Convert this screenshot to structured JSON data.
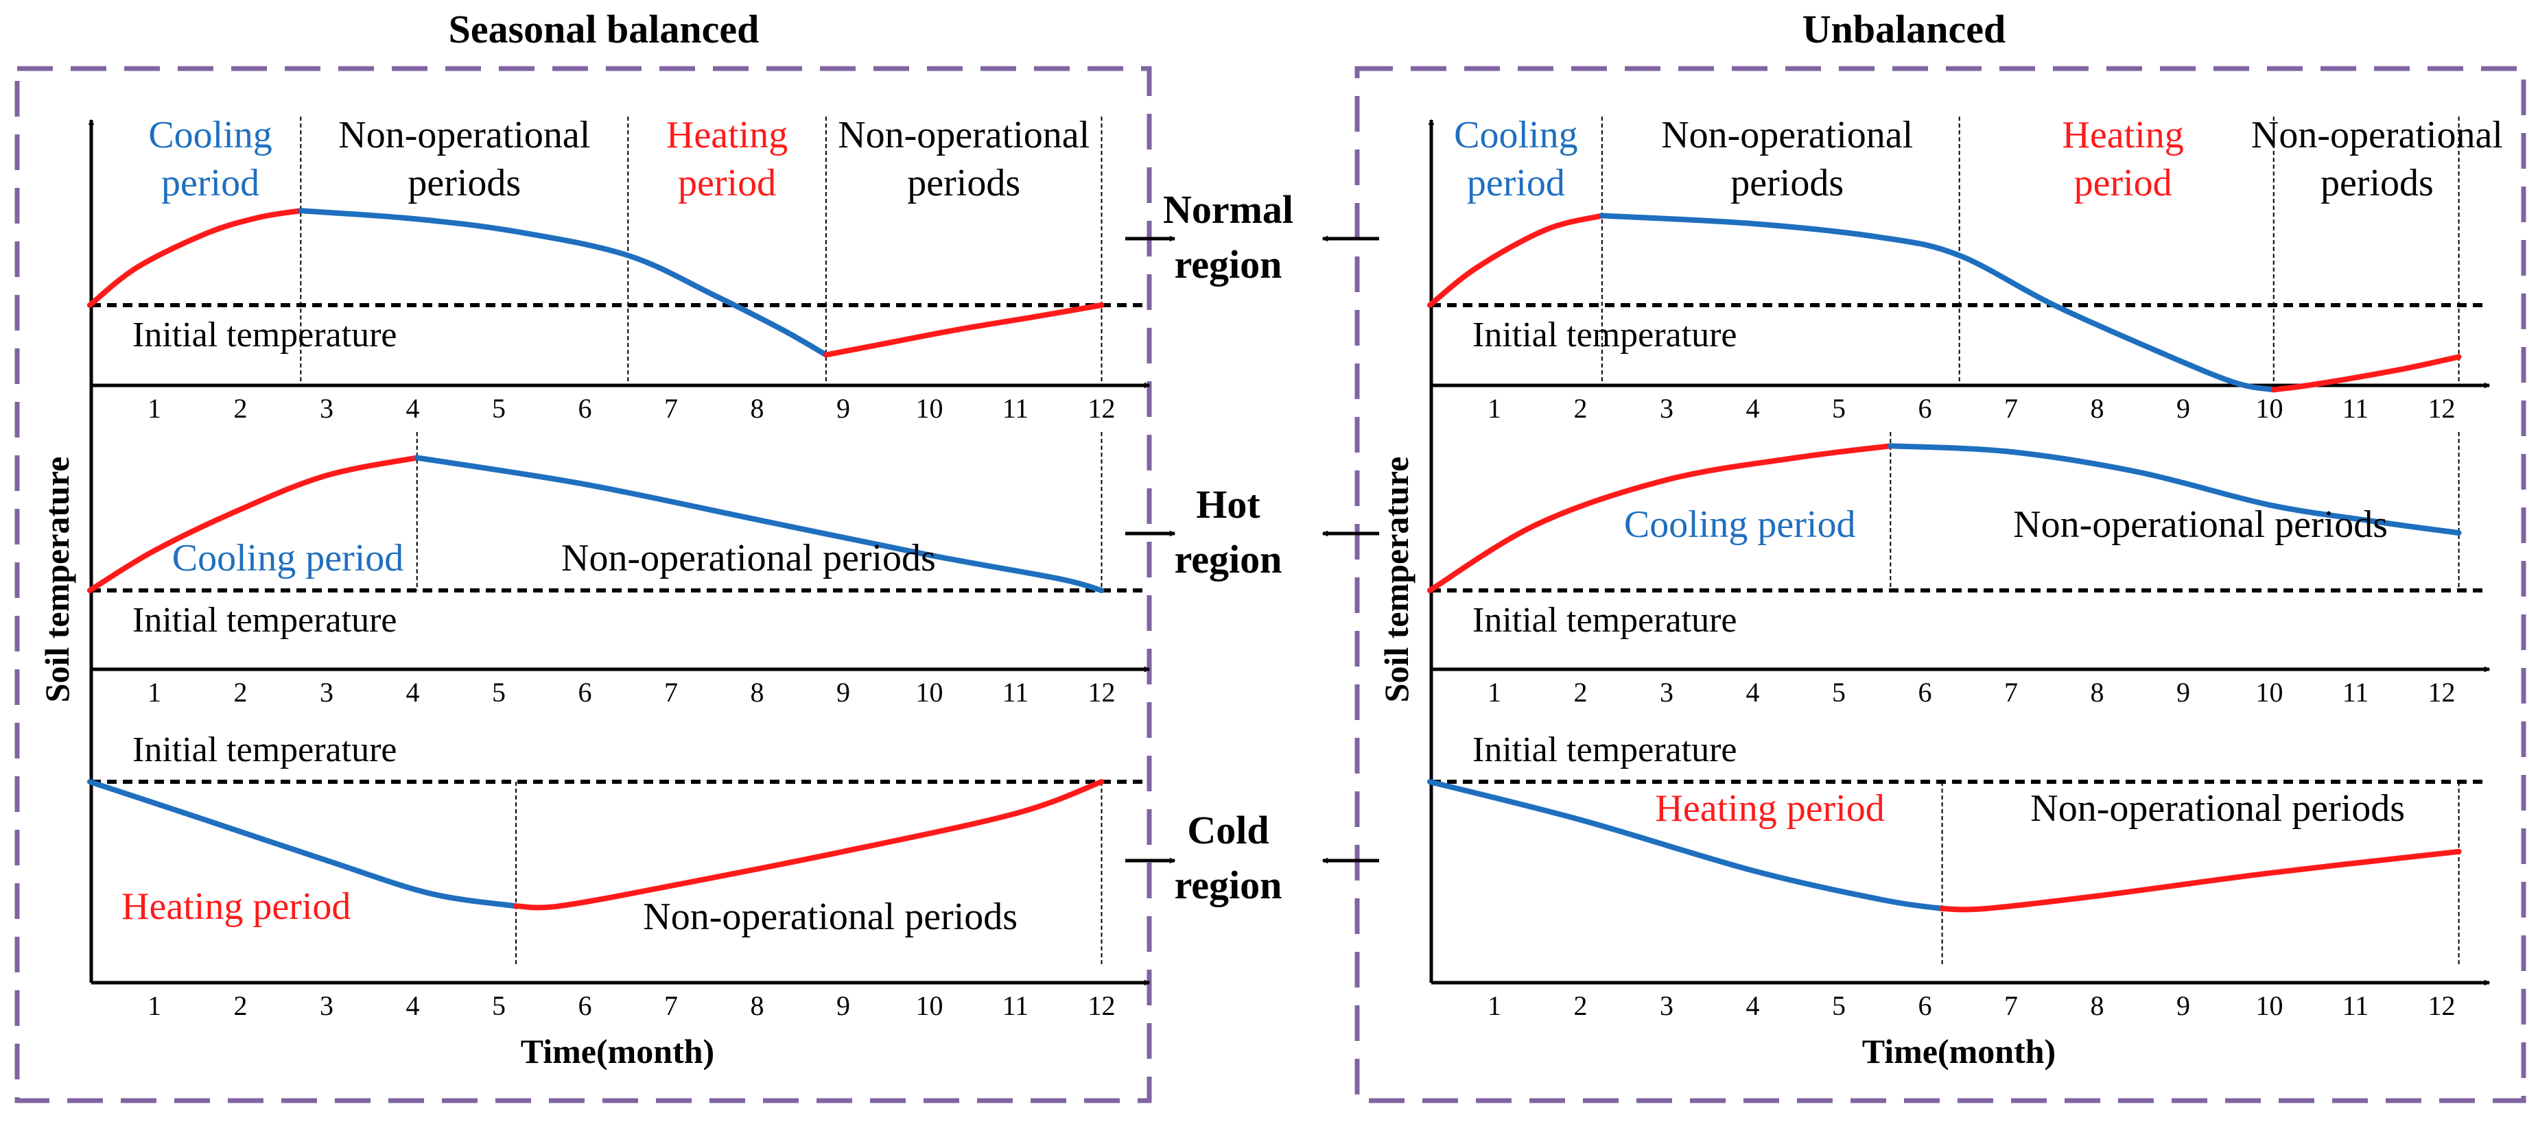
{
  "titles": {
    "left": "Seasonal balanced",
    "right": "Unbalanced"
  },
  "axes": {
    "ylabel": "Soil temperature",
    "xlabel": "Time(month)",
    "ticks": [
      "1",
      "2",
      "3",
      "4",
      "5",
      "6",
      "7",
      "8",
      "9",
      "10",
      "11",
      "12"
    ]
  },
  "initial_label": "Initial temperature",
  "regions": [
    {
      "line1": "Normal",
      "line2": "region"
    },
    {
      "line1": "Hot",
      "line2": "region"
    },
    {
      "line1": "Cold",
      "line2": "region"
    }
  ],
  "colors": {
    "cooling": "#1f6fbf",
    "heating": "#ff1a1a",
    "frame": "#8064a2",
    "black": "#000000"
  },
  "chart_data": [
    {
      "type": "line",
      "panel": "left",
      "region": "normal",
      "baseline": 0,
      "xlim": [
        0.25,
        12.5
      ],
      "series": [
        {
          "name": "Cooling period",
          "color": "heating",
          "x": [
            0.25,
            0.8,
            1.6,
            2.2,
            2.7
          ],
          "y": [
            0,
            0.38,
            0.72,
            0.88,
            0.95
          ]
        },
        {
          "name": "Non-operational periods",
          "color": "cooling",
          "x": [
            2.7,
            4,
            5.2,
            6.5,
            7.5,
            8.3,
            8.8
          ],
          "y": [
            0.95,
            0.87,
            0.74,
            0.5,
            0.1,
            -0.25,
            -0.5
          ]
        },
        {
          "name": "Heating period",
          "color": "heating",
          "x": [
            8.8,
            9.4,
            10.3,
            11.2,
            12
          ],
          "y": [
            -0.5,
            -0.4,
            -0.25,
            -0.12,
            0
          ]
        }
      ],
      "dividers": [
        2.7,
        6.5,
        8.8,
        12
      ],
      "labels": [
        {
          "lines": [
            "Cooling",
            "period"
          ],
          "color": "cooling",
          "x": 1.65
        },
        {
          "lines": [
            "Non-operational",
            "periods"
          ],
          "color": "black",
          "x": 4.6
        },
        {
          "lines": [
            "Heating",
            "period"
          ],
          "color": "heating",
          "x": 7.65
        },
        {
          "lines": [
            "Non-operational",
            "periods"
          ],
          "color": "black",
          "x": 10.4
        }
      ]
    },
    {
      "type": "line",
      "panel": "left",
      "region": "hot",
      "baseline": 0,
      "xlim": [
        0.25,
        12.5
      ],
      "series": [
        {
          "name": "Cooling period",
          "color": "heating",
          "x": [
            0.25,
            1,
            2,
            3,
            4.05
          ],
          "y": [
            0,
            0.27,
            0.55,
            0.78,
            0.9
          ]
        },
        {
          "name": "Non-operational periods",
          "color": "cooling",
          "x": [
            4.05,
            6,
            8,
            10,
            11.5,
            12
          ],
          "y": [
            0.9,
            0.72,
            0.48,
            0.24,
            0.08,
            0
          ]
        }
      ],
      "dividers": [
        4.05,
        12
      ],
      "labels": [
        {
          "lines": [
            "Cooling period"
          ],
          "color": "cooling",
          "x": 2.55
        },
        {
          "lines": [
            "Non-operational periods"
          ],
          "color": "black",
          "x": 7.9
        }
      ]
    },
    {
      "type": "line",
      "panel": "left",
      "region": "cold",
      "baseline": 0,
      "xlim": [
        0.25,
        12.5
      ],
      "series": [
        {
          "name": "Heating period",
          "color": "cooling",
          "x": [
            0.25,
            1.5,
            3,
            4.2,
            5.2
          ],
          "y": [
            0,
            -0.28,
            -0.62,
            -0.88,
            -0.98
          ]
        },
        {
          "name": "Non-operational periods",
          "color": "heating",
          "x": [
            5.2,
            5.7,
            7,
            9,
            11,
            12
          ],
          "y": [
            -0.98,
            -0.98,
            -0.82,
            -0.55,
            -0.25,
            0
          ]
        }
      ],
      "dividers": [
        5.2,
        12
      ],
      "labels": [
        {
          "lines": [
            "Heating period"
          ],
          "color": "heating",
          "x": 1.95
        },
        {
          "lines": [
            "Non-operational periods"
          ],
          "color": "black",
          "x": 8.85
        }
      ]
    },
    {
      "type": "line",
      "panel": "right",
      "region": "normal",
      "baseline": 0,
      "xlim": [
        0.25,
        12.5
      ],
      "series": [
        {
          "name": "Cooling period",
          "color": "heating",
          "x": [
            0.25,
            0.8,
            1.6,
            2.25
          ],
          "y": [
            0,
            0.38,
            0.76,
            0.9
          ]
        },
        {
          "name": "Non-operational periods",
          "color": "cooling",
          "x": [
            2.25,
            4,
            5.5,
            6.4,
            7.5,
            8.8,
            9.6,
            10.05
          ],
          "y": [
            0.9,
            0.82,
            0.68,
            0.5,
            0,
            -0.5,
            -0.78,
            -0.85
          ]
        },
        {
          "name": "Heating period",
          "color": "heating",
          "x": [
            10.05,
            10.5,
            11.5,
            12.2
          ],
          "y": [
            -0.85,
            -0.8,
            -0.65,
            -0.52
          ]
        }
      ],
      "dividers": [
        2.25,
        6.4,
        10.05,
        12.2
      ],
      "labels": [
        {
          "lines": [
            "Cooling",
            "period"
          ],
          "color": "cooling",
          "x": 1.25
        },
        {
          "lines": [
            "Non-operational",
            "periods"
          ],
          "color": "black",
          "x": 4.4
        },
        {
          "lines": [
            "Heating",
            "period"
          ],
          "color": "heating",
          "x": 8.3
        },
        {
          "lines": [
            "Non-operational",
            "periods"
          ],
          "color": "black",
          "x": 11.25
        }
      ]
    },
    {
      "type": "line",
      "panel": "right",
      "region": "hot",
      "baseline": 0,
      "xlim": [
        0.25,
        12.5
      ],
      "series": [
        {
          "name": "Cooling period",
          "color": "heating",
          "x": [
            0.25,
            1.5,
            3,
            4.5,
            5.6
          ],
          "y": [
            0,
            0.45,
            0.75,
            0.9,
            0.98
          ]
        },
        {
          "name": "Non-operational periods",
          "color": "cooling",
          "x": [
            5.6,
            7,
            8.5,
            10,
            11.2,
            12.2
          ],
          "y": [
            0.98,
            0.94,
            0.8,
            0.58,
            0.47,
            0.39
          ]
        }
      ],
      "dividers": [
        5.6,
        12.2
      ],
      "labels": [
        {
          "lines": [
            "Cooling period"
          ],
          "color": "cooling",
          "x": 3.85
        },
        {
          "lines": [
            "Non-operational periods"
          ],
          "color": "black",
          "x": 9.2
        }
      ]
    },
    {
      "type": "line",
      "panel": "right",
      "region": "cold",
      "baseline": 0,
      "xlim": [
        0.25,
        12.5
      ],
      "series": [
        {
          "name": "Heating period",
          "color": "cooling",
          "x": [
            0.25,
            2,
            4,
            5.5,
            6.2
          ],
          "y": [
            0,
            -0.3,
            -0.7,
            -0.93,
            -1.0
          ]
        },
        {
          "name": "Non-operational periods",
          "color": "heating",
          "x": [
            6.2,
            6.7,
            8,
            10,
            12.2
          ],
          "y": [
            -1.0,
            -1.0,
            -0.9,
            -0.72,
            -0.55
          ]
        }
      ],
      "dividers": [
        6.2,
        12.2
      ],
      "labels": [
        {
          "lines": [
            "Heating period"
          ],
          "color": "heating",
          "x": 4.2
        },
        {
          "lines": [
            "Non-operational periods"
          ],
          "color": "black",
          "x": 9.4
        }
      ]
    }
  ]
}
